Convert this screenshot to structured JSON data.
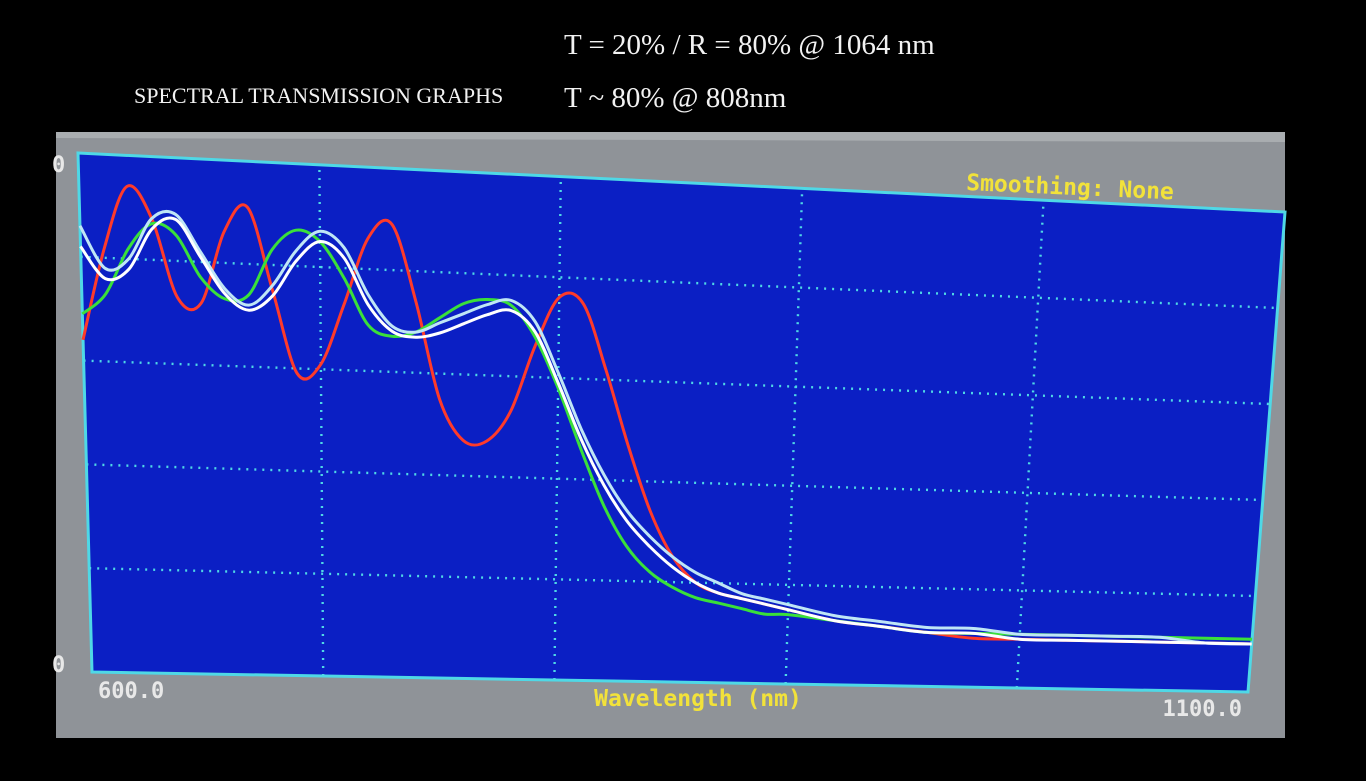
{
  "header": {
    "title": "SPECTRAL TRANSMISSION GRAPHS",
    "spec_line_1": "T = 20% / R = 80% @ 1064 nm",
    "spec_line_2": "T ~ 80% @ 808nm"
  },
  "colors": {
    "background": "#000000",
    "monitor_bezel": "#a9adb0",
    "plot_background": "#0b1fc4",
    "grid": "#4fd8e6",
    "overlay_text": "#f2e23a",
    "axis_text": "#e8e8e8"
  },
  "chart_data": {
    "type": "line",
    "xlabel": "Wavelength (nm)",
    "ylabel": "",
    "xlim": [
      600,
      1100
    ],
    "ylim": [
      0,
      100
    ],
    "x_tick_labels": [
      "600.0",
      "1100.0"
    ],
    "y_tick_labels": [
      "0",
      "0"
    ],
    "grid": true,
    "annotation": "Smoothing: None",
    "series": [
      {
        "color": "#ff3a2a",
        "x": [
          600,
          610,
          620,
          630,
          640,
          650,
          660,
          670,
          680,
          690,
          700,
          710,
          720,
          730,
          740,
          750,
          760,
          770,
          780,
          790,
          800,
          810,
          820,
          830,
          840,
          850,
          860,
          870,
          880,
          890,
          900,
          920,
          940,
          960,
          980,
          1000,
          1020,
          1040,
          1060,
          1080,
          1100
        ],
        "y": [
          64,
          82,
          94,
          88,
          73,
          72,
          86,
          91,
          75,
          59,
          61,
          73,
          86,
          89,
          74,
          55,
          47,
          47,
          53,
          66,
          76,
          75,
          62,
          47,
          34,
          25,
          20,
          18,
          17,
          16,
          15,
          13,
          12,
          11,
          10,
          10,
          10,
          10,
          10,
          10,
          10
        ]
      },
      {
        "color": "#3ae03a",
        "x": [
          600,
          610,
          620,
          630,
          640,
          650,
          660,
          670,
          680,
          690,
          700,
          710,
          720,
          730,
          740,
          750,
          760,
          770,
          780,
          790,
          800,
          810,
          820,
          830,
          840,
          850,
          860,
          870,
          880,
          890,
          900,
          920,
          940,
          960,
          980,
          1000,
          1020,
          1040,
          1060,
          1080,
          1100
        ],
        "y": [
          69,
          73,
          82,
          87,
          85,
          77,
          73,
          74,
          83,
          87,
          85,
          78,
          69,
          67,
          68,
          71,
          74,
          75,
          74,
          68,
          58,
          46,
          35,
          27,
          22,
          19,
          17,
          16,
          15,
          14,
          14,
          13,
          12,
          11,
          11,
          11,
          11,
          11,
          11,
          11,
          11
        ]
      },
      {
        "color": "#bfe6f6",
        "x": [
          600,
          610,
          620,
          630,
          640,
          650,
          660,
          670,
          680,
          690,
          700,
          710,
          720,
          730,
          740,
          750,
          760,
          770,
          780,
          790,
          800,
          810,
          820,
          830,
          840,
          850,
          860,
          870,
          880,
          890,
          900,
          920,
          940,
          960,
          980,
          1000,
          1020,
          1040,
          1060,
          1080,
          1100
        ],
        "y": [
          86,
          78,
          80,
          88,
          89,
          82,
          75,
          72,
          76,
          83,
          87,
          84,
          75,
          69,
          68,
          70,
          72,
          74,
          75,
          71,
          61,
          50,
          41,
          34,
          29,
          25,
          22,
          20,
          18,
          17,
          16,
          14,
          13,
          12,
          12,
          11,
          11,
          11,
          11,
          10,
          10
        ]
      },
      {
        "color": "#ffffff",
        "x": [
          600,
          610,
          620,
          630,
          640,
          650,
          660,
          670,
          680,
          690,
          700,
          710,
          720,
          730,
          740,
          750,
          760,
          770,
          780,
          790,
          800,
          810,
          820,
          830,
          840,
          850,
          860,
          870,
          880,
          890,
          900,
          920,
          940,
          960,
          980,
          1000,
          1020,
          1040,
          1060,
          1080,
          1100
        ],
        "y": [
          82,
          76,
          78,
          86,
          88,
          81,
          74,
          71,
          74,
          81,
          85,
          82,
          73,
          68,
          67,
          68,
          70,
          72,
          73,
          69,
          59,
          48,
          39,
          32,
          27,
          23,
          20,
          18,
          17,
          16,
          15,
          13,
          12,
          11,
          11,
          10,
          10,
          10,
          10,
          10,
          10
        ]
      }
    ]
  }
}
